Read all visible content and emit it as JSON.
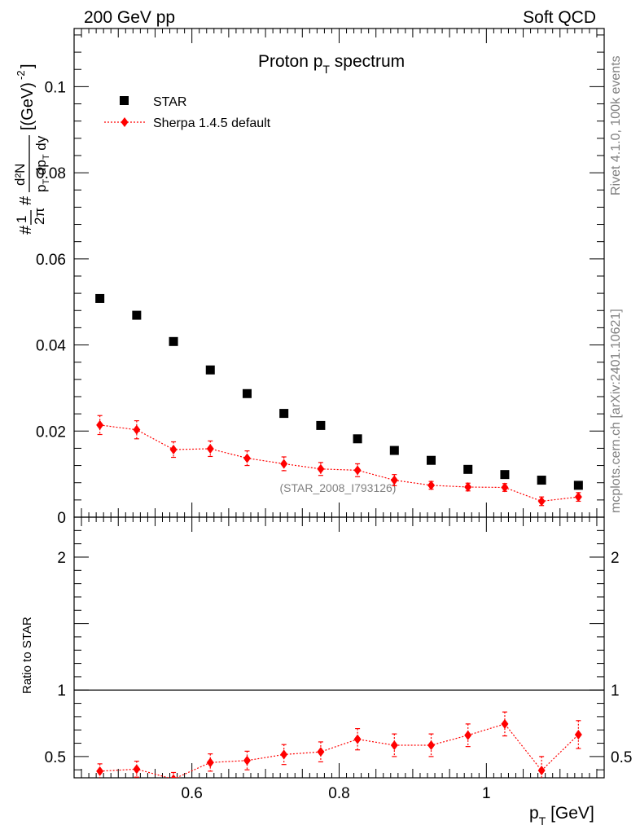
{
  "header": {
    "left": "200 GeV pp",
    "right": "Soft QCD"
  },
  "side_labels": {
    "rivet": "Rivet 4.1.0,  100k events",
    "site": "mcplots.cern.ch [arXiv:2401.10621]"
  },
  "chart_data": {
    "type": "scatter",
    "title": "Proton p",
    "title_sub": "T",
    "title_tail": " spectrum",
    "watermark": "(STAR_2008_I793126)",
    "x": [
      0.475,
      0.525,
      0.575,
      0.625,
      0.675,
      0.725,
      0.775,
      0.825,
      0.875,
      0.925,
      0.975,
      1.025,
      1.075,
      1.125
    ],
    "xlim": [
      0.44,
      1.16
    ],
    "xticks": [
      "0.6",
      "0.8",
      "1"
    ],
    "xlabel": {
      "main": "p",
      "sub": "T",
      "tail": " [GeV]"
    },
    "top": {
      "ylim": [
        0,
        0.1135
      ],
      "yticks": [
        "0",
        "0.02",
        "0.04",
        "0.06",
        "0.08",
        "0.1"
      ],
      "ylabel": "#1/2π #d²N/p_T dp_T dy [(GeV)⁻²]",
      "series": [
        {
          "name": "STAR",
          "marker": "square",
          "color": "#000000",
          "values": [
            0.0508,
            0.0469,
            0.0408,
            0.0342,
            0.0287,
            0.0241,
            0.0213,
            0.0182,
            0.0155,
            0.0132,
            0.0111,
            0.0099,
            0.0086,
            0.0074
          ]
        },
        {
          "name": "Sherpa 1.4.5 default",
          "marker": "diamond",
          "color": "#ff0000",
          "values": [
            0.0214,
            0.0203,
            0.0157,
            0.0159,
            0.0137,
            0.0124,
            0.0112,
            0.0109,
            0.0086,
            0.0074,
            0.007,
            0.0069,
            0.0037,
            0.0047
          ],
          "errors": [
            0.0022,
            0.0021,
            0.0018,
            0.0018,
            0.0017,
            0.0016,
            0.0015,
            0.0015,
            0.0013,
            0.0009,
            0.0009,
            0.0009,
            0.001,
            0.001
          ]
        }
      ]
    },
    "ratio": {
      "ylabel": "Ratio to STAR",
      "ylim": [
        0.34,
        2.3
      ],
      "yticks": [
        "0.5",
        "1",
        "2"
      ],
      "reference_line": 1,
      "series": [
        {
          "name": "Sherpa 1.4.5 default",
          "marker": "diamond",
          "color": "#ff0000",
          "values": [
            0.39,
            0.405,
            0.33,
            0.455,
            0.47,
            0.515,
            0.535,
            0.63,
            0.585,
            0.585,
            0.66,
            0.745,
            0.395,
            0.665
          ],
          "errors": [
            0.055,
            0.06,
            0.05,
            0.065,
            0.07,
            0.075,
            0.075,
            0.08,
            0.085,
            0.085,
            0.085,
            0.09,
            0.105,
            0.105
          ]
        }
      ]
    }
  }
}
